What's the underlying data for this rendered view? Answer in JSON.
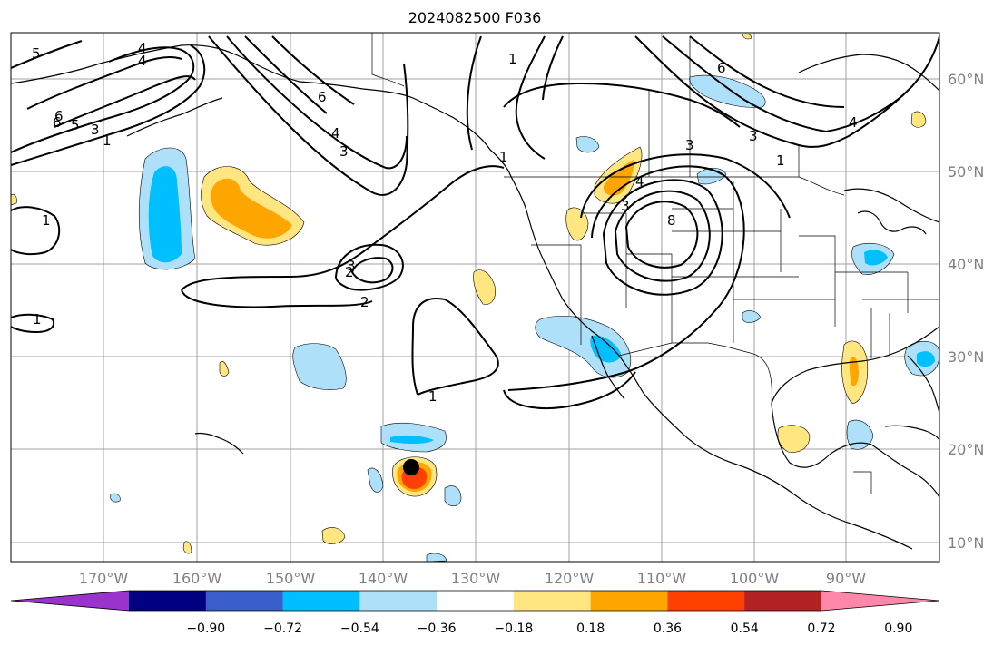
{
  "title": "2024082500 F036",
  "lon_ticks": [
    "170°W",
    "160°W",
    "150°W",
    "140°W",
    "130°W",
    "120°W",
    "110°W",
    "100°W",
    "90°W"
  ],
  "lat_ticks": [
    "60°N",
    "50°N",
    "40°N",
    "30°N",
    "20°N",
    "10°N"
  ],
  "colorbar": {
    "levels": [
      "−0.90",
      "−0.72",
      "−0.54",
      "−0.36",
      "−0.18",
      "0.18",
      "0.36",
      "0.54",
      "0.72",
      "0.90"
    ],
    "colors": [
      "#9933cc",
      "#000080",
      "#3a5fcd",
      "#00bfff",
      "#aee0fa",
      "#ffffff",
      "#ffe680",
      "#ffa500",
      "#ff4000",
      "#b22222",
      "#ff88aa"
    ]
  },
  "contour_labels": [
    "5",
    "4",
    "6",
    "5",
    "3",
    "1",
    "6",
    "4",
    "3",
    "1",
    "1",
    "6",
    "4",
    "3",
    "1",
    "8",
    "3",
    "3",
    "4",
    "2",
    "3",
    "2",
    "1",
    "1",
    "1",
    "6",
    "4"
  ],
  "markers": {
    "storm_center_color": "#000000"
  }
}
